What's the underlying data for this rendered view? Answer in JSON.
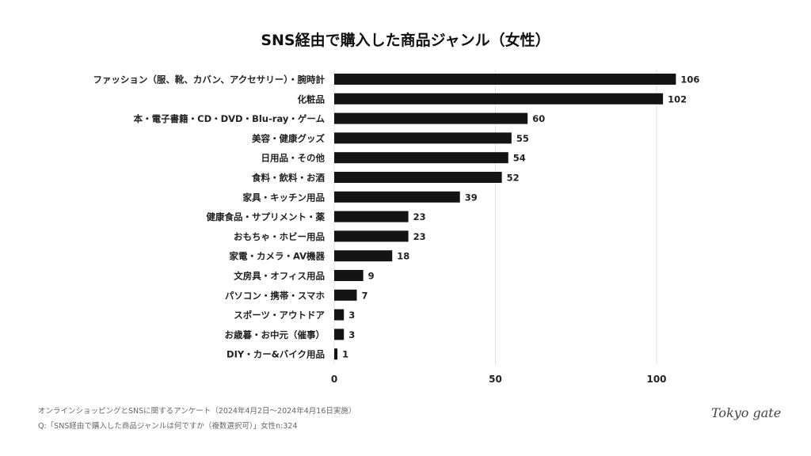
{
  "chart_data": {
    "type": "bar",
    "orientation": "horizontal",
    "title": "SNS経由で購入した商品ジャンル（女性）",
    "categories": [
      "ファッション（服、靴、カバン、アクセサリー）・腕時計",
      "化粧品",
      "本・電子書籍・CD・DVD・Blu-ray・ゲーム",
      "美容・健康グッズ",
      "日用品・その他",
      "食料・飲料・お酒",
      "家具・キッチン用品",
      "健康食品・サプリメント・薬",
      "おもちゃ・ホビー用品",
      "家電・カメラ・AV機器",
      "文房具・オフィス用品",
      "パソコン・携帯・スマホ",
      "スポーツ・アウトドア",
      "お歳暮・お中元（催事）",
      "DIY・カー&バイク用品"
    ],
    "values": [
      106,
      102,
      60,
      55,
      54,
      52,
      39,
      23,
      23,
      18,
      9,
      7,
      3,
      3,
      1
    ],
    "xticks": [
      0,
      50,
      100
    ],
    "xlim": [
      0,
      110
    ],
    "grid": true,
    "bar_color": "#141414"
  },
  "footer": {
    "source": "オンラインショッピングとSNSに関するアンケート（2024年4月2日〜2024年4月16日実施）",
    "question": "Q:「SNS経由で購入した商品ジャンルは何ですか（複数選択可）」女性n:324"
  },
  "logo": "Tokyo gate"
}
